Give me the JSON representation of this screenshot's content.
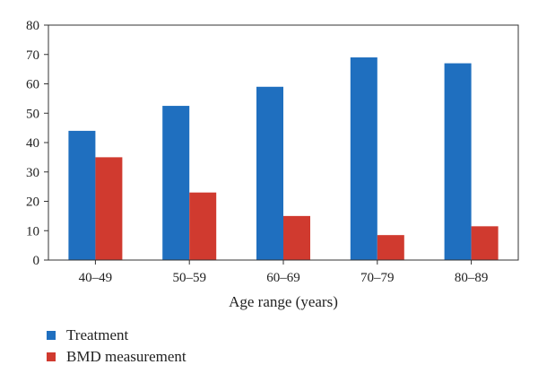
{
  "chart_data": {
    "type": "bar",
    "categories": [
      "40–49",
      "50–59",
      "60–69",
      "70–79",
      "80–89"
    ],
    "series": [
      {
        "name": "Treatment",
        "color": "#1f6fbf",
        "values": [
          44,
          52.5,
          59,
          69,
          67
        ]
      },
      {
        "name": "BMD measurement",
        "color": "#d03a2f",
        "values": [
          35,
          23,
          15,
          8.5,
          11.5
        ]
      }
    ],
    "xlabel": "Age range (years)",
    "ylabel": "",
    "ylim": [
      0,
      80
    ],
    "yticks": [
      0,
      10,
      20,
      30,
      40,
      50,
      60,
      70,
      80
    ],
    "grid": false,
    "legend_position": "bottom-left"
  }
}
